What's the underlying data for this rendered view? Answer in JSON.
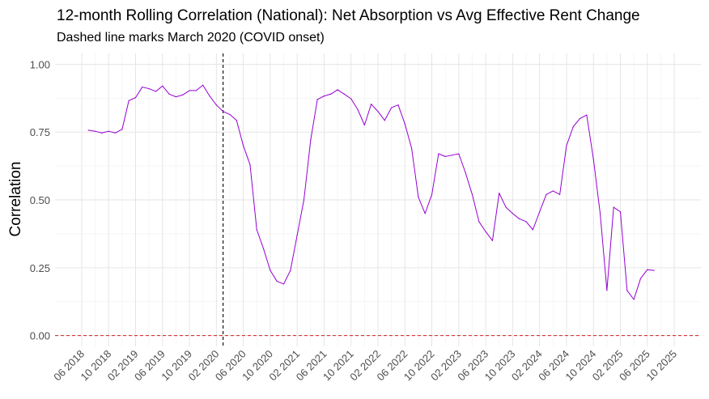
{
  "chart_data": {
    "type": "line",
    "title": "12-month Rolling Correlation (National): Net Absorption vs Avg Effective Rent Change",
    "subtitle": "Dashed line marks March 2020 (COVID onset)",
    "xlabel": "",
    "ylabel": "Correlation",
    "ylim": [
      -0.04,
      1.04
    ],
    "y_ticks": [
      0.0,
      0.25,
      0.5,
      0.75,
      1.0
    ],
    "y_tick_labels": [
      "0.00",
      "0.25",
      "0.50",
      "0.75",
      "1.00"
    ],
    "x_tick_labels": [
      "06 2018",
      "10 2018",
      "02 2019",
      "06 2019",
      "10 2019",
      "02 2020",
      "06 2020",
      "10 2020",
      "02 2021",
      "06 2021",
      "10 2021",
      "02 2022",
      "06 2022",
      "10 2022",
      "02 2023",
      "06 2023",
      "10 2023",
      "02 2024",
      "06 2024",
      "10 2024",
      "02 2025",
      "06 2025",
      "10 2025"
    ],
    "grid": true,
    "reference_lines": [
      {
        "orientation": "vertical",
        "x": "2020-03",
        "style": "dashed",
        "color": "#000000"
      },
      {
        "orientation": "horizontal",
        "y": 0.0,
        "style": "dashed",
        "color": "#cc2222"
      }
    ],
    "series": [
      {
        "color": "#9400d3",
        "points": [
          [
            "2018-07",
            0.757
          ],
          [
            "2018-08",
            0.753
          ],
          [
            "2018-09",
            0.747
          ],
          [
            "2018-10",
            0.753
          ],
          [
            "2018-11",
            0.747
          ],
          [
            "2018-12",
            0.76
          ],
          [
            "2019-01",
            0.866
          ],
          [
            "2019-02",
            0.877
          ],
          [
            "2019-03",
            0.916
          ],
          [
            "2019-04",
            0.91
          ],
          [
            "2019-05",
            0.9
          ],
          [
            "2019-06",
            0.92
          ],
          [
            "2019-07",
            0.89
          ],
          [
            "2019-08",
            0.88
          ],
          [
            "2019-09",
            0.887
          ],
          [
            "2019-10",
            0.903
          ],
          [
            "2019-11",
            0.903
          ],
          [
            "2019-12",
            0.923
          ],
          [
            "2020-01",
            0.883
          ],
          [
            "2020-02",
            0.85
          ],
          [
            "2020-03",
            0.826
          ],
          [
            "2020-04",
            0.815
          ],
          [
            "2020-05",
            0.793
          ],
          [
            "2020-06",
            0.7
          ],
          [
            "2020-07",
            0.63
          ],
          [
            "2020-08",
            0.39
          ],
          [
            "2020-09",
            0.32
          ],
          [
            "2020-10",
            0.24
          ],
          [
            "2020-11",
            0.2
          ],
          [
            "2020-12",
            0.19
          ],
          [
            "2021-01",
            0.24
          ],
          [
            "2021-02",
            0.37
          ],
          [
            "2021-03",
            0.5
          ],
          [
            "2021-04",
            0.72
          ],
          [
            "2021-05",
            0.87
          ],
          [
            "2021-06",
            0.883
          ],
          [
            "2021-07",
            0.89
          ],
          [
            "2021-08",
            0.906
          ],
          [
            "2021-09",
            0.89
          ],
          [
            "2021-10",
            0.873
          ],
          [
            "2021-11",
            0.833
          ],
          [
            "2021-12",
            0.776
          ],
          [
            "2022-01",
            0.853
          ],
          [
            "2022-02",
            0.826
          ],
          [
            "2022-03",
            0.793
          ],
          [
            "2022-04",
            0.84
          ],
          [
            "2022-05",
            0.85
          ],
          [
            "2022-06",
            0.78
          ],
          [
            "2022-07",
            0.69
          ],
          [
            "2022-08",
            0.51
          ],
          [
            "2022-09",
            0.45
          ],
          [
            "2022-10",
            0.52
          ],
          [
            "2022-11",
            0.67
          ],
          [
            "2022-12",
            0.66
          ],
          [
            "2023-01",
            0.665
          ],
          [
            "2023-02",
            0.67
          ],
          [
            "2023-03",
            0.6
          ],
          [
            "2023-04",
            0.52
          ],
          [
            "2023-05",
            0.42
          ],
          [
            "2023-06",
            0.383
          ],
          [
            "2023-07",
            0.35
          ],
          [
            "2023-08",
            0.525
          ],
          [
            "2023-09",
            0.473
          ],
          [
            "2023-10",
            0.45
          ],
          [
            "2023-11",
            0.43
          ],
          [
            "2023-12",
            0.42
          ],
          [
            "2024-01",
            0.39
          ],
          [
            "2024-02",
            0.456
          ],
          [
            "2024-03",
            0.52
          ],
          [
            "2024-04",
            0.533
          ],
          [
            "2024-05",
            0.52
          ],
          [
            "2024-06",
            0.7
          ],
          [
            "2024-07",
            0.77
          ],
          [
            "2024-08",
            0.8
          ],
          [
            "2024-09",
            0.813
          ],
          [
            "2024-10",
            0.65
          ],
          [
            "2024-11",
            0.45
          ],
          [
            "2024-12",
            0.166
          ],
          [
            "2025-01",
            0.473
          ],
          [
            "2025-02",
            0.456
          ],
          [
            "2025-03",
            0.166
          ],
          [
            "2025-04",
            0.133
          ],
          [
            "2025-05",
            0.21
          ],
          [
            "2025-06",
            0.243
          ],
          [
            "2025-07",
            0.24
          ]
        ]
      }
    ]
  }
}
